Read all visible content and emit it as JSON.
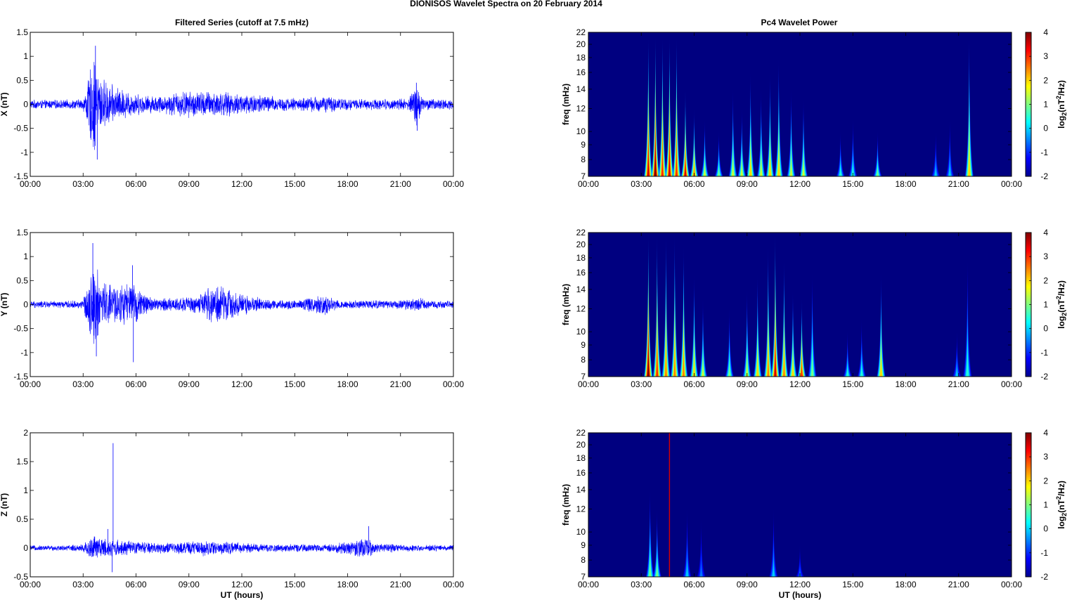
{
  "figure": {
    "title": "DIONISOS Wavelet Spectra on 20 February  2014"
  },
  "left_column": {
    "title": "Filtered Series (cutoff at 7.5 mHz)",
    "xlabel": "UT (hours)"
  },
  "right_column": {
    "title": "Pc4 Wavelet Power",
    "xlabel": "UT (hours)",
    "ylabel": "freq (mHz)"
  },
  "chart_data": [
    {
      "type": "line",
      "title": "Filtered Series (cutoff at 7.5 mHz)",
      "ylabel": "X (nT)",
      "xlabel": "",
      "xlim": [
        0,
        24
      ],
      "ylim": [
        -1.5,
        1.5
      ],
      "x_tick_labels": [
        "00:00",
        "03:00",
        "06:00",
        "09:00",
        "12:00",
        "15:00",
        "18:00",
        "21:00",
        "00:00"
      ],
      "y_ticks": [
        -1.5,
        -1,
        -0.5,
        0,
        0.5,
        1,
        1.5
      ],
      "y_tick_labels": [
        "-1.5",
        "-1",
        "-0.5",
        "0",
        "0.5",
        "1",
        "1.5"
      ],
      "series": [
        {
          "color": "#0000ff",
          "envelope_hours": [
            0,
            1,
            2,
            3,
            3.3,
            3.6,
            3.8,
            4.2,
            4.8,
            5.5,
            6.5,
            7.5,
            8.5,
            9.5,
            10.5,
            11.5,
            12.5,
            13.5,
            14.5,
            15.5,
            16.5,
            17.5,
            18.5,
            19.5,
            20.5,
            21.5,
            21.9,
            22.3,
            23,
            24
          ],
          "envelope_amplitude_nT": [
            0.1,
            0.1,
            0.1,
            0.12,
            0.6,
            1.2,
            0.8,
            0.55,
            0.4,
            0.3,
            0.2,
            0.2,
            0.3,
            0.3,
            0.3,
            0.25,
            0.25,
            0.2,
            0.15,
            0.15,
            0.2,
            0.15,
            0.12,
            0.12,
            0.12,
            0.15,
            0.5,
            0.15,
            0.12,
            0.12
          ],
          "spikes": [
            {
              "x": 3.7,
              "y": 1.22
            },
            {
              "x": 3.8,
              "y": -1.15
            },
            {
              "x": 21.9,
              "y": 0.45
            },
            {
              "x": 21.95,
              "y": -0.55
            }
          ]
        }
      ]
    },
    {
      "type": "line",
      "title": "",
      "ylabel": "Y (nT)",
      "xlabel": "",
      "xlim": [
        0,
        24
      ],
      "ylim": [
        -1.5,
        1.5
      ],
      "x_tick_labels": [
        "00:00",
        "03:00",
        "06:00",
        "09:00",
        "12:00",
        "15:00",
        "18:00",
        "21:00",
        "00:00"
      ],
      "y_ticks": [
        -1.5,
        -1,
        -0.5,
        0,
        0.5,
        1,
        1.5
      ],
      "y_tick_labels": [
        "-1.5",
        "-1",
        "-0.5",
        "0",
        "0.5",
        "1",
        "1.5"
      ],
      "series": [
        {
          "color": "#0000ff",
          "envelope_hours": [
            0,
            1,
            2,
            3,
            3.3,
            3.6,
            3.9,
            4.3,
            5.0,
            5.7,
            6.3,
            7.0,
            8.0,
            9.5,
            10.2,
            10.7,
            11.2,
            12.5,
            13.5,
            15,
            16.7,
            17.5,
            19,
            21,
            22,
            23,
            24
          ],
          "envelope_amplitude_nT": [
            0.08,
            0.08,
            0.08,
            0.1,
            0.6,
            1.0,
            0.7,
            0.5,
            0.45,
            0.5,
            0.3,
            0.15,
            0.15,
            0.2,
            0.4,
            0.5,
            0.35,
            0.2,
            0.12,
            0.1,
            0.25,
            0.1,
            0.1,
            0.1,
            0.15,
            0.08,
            0.08
          ],
          "spikes": [
            {
              "x": 3.55,
              "y": 1.28
            },
            {
              "x": 3.75,
              "y": -1.08
            },
            {
              "x": 5.8,
              "y": 0.82
            },
            {
              "x": 5.85,
              "y": -1.2
            }
          ]
        }
      ]
    },
    {
      "type": "line",
      "title": "",
      "ylabel": "Z (nT)",
      "xlabel": "UT (hours)",
      "xlim": [
        0,
        24
      ],
      "ylim": [
        -0.5,
        2
      ],
      "x_tick_labels": [
        "00:00",
        "03:00",
        "06:00",
        "09:00",
        "12:00",
        "15:00",
        "18:00",
        "21:00",
        "00:00"
      ],
      "y_ticks": [
        -0.5,
        0,
        0.5,
        1,
        1.5,
        2
      ],
      "y_tick_labels": [
        "-0.5",
        "0",
        "0.5",
        "1",
        "1.5",
        "2"
      ],
      "series": [
        {
          "color": "#0000ff",
          "envelope_hours": [
            0,
            2,
            3,
            3.5,
            4,
            5,
            6,
            8,
            10,
            11,
            13,
            15,
            17,
            19.2,
            19.5,
            21,
            23,
            24
          ],
          "envelope_amplitude_nT": [
            0.05,
            0.05,
            0.08,
            0.25,
            0.2,
            0.15,
            0.12,
            0.1,
            0.15,
            0.12,
            0.08,
            0.07,
            0.07,
            0.2,
            0.1,
            0.07,
            0.06,
            0.06
          ],
          "spikes": [
            {
              "x": 4.7,
              "y": 1.82
            },
            {
              "x": 4.65,
              "y": -0.42
            },
            {
              "x": 4.4,
              "y": 0.33
            },
            {
              "x": 19.2,
              "y": 0.38
            }
          ]
        }
      ]
    },
    {
      "type": "heatmap",
      "title": "Pc4 Wavelet Power",
      "ylabel": "freq (mHz)",
      "xlabel": "",
      "xlim": [
        0,
        24
      ],
      "ylim": [
        7,
        22
      ],
      "y_scale": "log",
      "x_tick_labels": [
        "00:00",
        "03:00",
        "06:00",
        "09:00",
        "12:00",
        "15:00",
        "18:00",
        "21:00",
        "00:00"
      ],
      "y_ticks": [
        7,
        8,
        9,
        10,
        12,
        14,
        16,
        18,
        20,
        22
      ],
      "y_tick_labels": [
        "7",
        "8",
        "9",
        "10",
        "12",
        "14",
        "16",
        "18",
        "20",
        "22"
      ],
      "colorbar": {
        "label": "log2(nT²/Hz)",
        "label_base": "log",
        "label_sub": "2",
        "label_mid": "(nT",
        "label_sup": "2",
        "label_end": "/Hz)",
        "range": [
          -2,
          4
        ],
        "ticks": [
          -2,
          -1,
          0,
          1,
          2,
          3,
          4
        ],
        "tick_labels": [
          "-2",
          "-1",
          "0",
          "1",
          "2",
          "3",
          "4"
        ],
        "colormap": "jet"
      },
      "background_log2_power": -2,
      "bursts": [
        {
          "t": 3.4,
          "f_top": 22,
          "peak": 3.5
        },
        {
          "t": 3.8,
          "f_top": 22,
          "peak": 4
        },
        {
          "t": 4.2,
          "f_top": 22,
          "peak": 3
        },
        {
          "t": 4.6,
          "f_top": 22,
          "peak": 3.5
        },
        {
          "t": 5.0,
          "f_top": 22,
          "peak": 3
        },
        {
          "t": 5.5,
          "f_top": 14,
          "peak": 3.5
        },
        {
          "t": 6.0,
          "f_top": 12,
          "peak": 2.5
        },
        {
          "t": 6.6,
          "f_top": 11,
          "peak": 1.5
        },
        {
          "t": 7.4,
          "f_top": 10,
          "peak": 1
        },
        {
          "t": 8.2,
          "f_top": 14,
          "peak": 1.5
        },
        {
          "t": 8.7,
          "f_top": 12,
          "peak": 1.5
        },
        {
          "t": 9.2,
          "f_top": 16,
          "peak": 2
        },
        {
          "t": 9.8,
          "f_top": 14,
          "peak": 1.5
        },
        {
          "t": 10.3,
          "f_top": 16,
          "peak": 2
        },
        {
          "t": 10.8,
          "f_top": 18,
          "peak": 2
        },
        {
          "t": 11.5,
          "f_top": 14,
          "peak": 1.5
        },
        {
          "t": 12.2,
          "f_top": 13,
          "peak": 1.5
        },
        {
          "t": 14.3,
          "f_top": 10,
          "peak": 0.5
        },
        {
          "t": 15.0,
          "f_top": 11,
          "peak": 0.5
        },
        {
          "t": 16.4,
          "f_top": 10,
          "peak": 1
        },
        {
          "t": 19.7,
          "f_top": 10,
          "peak": 0
        },
        {
          "t": 20.5,
          "f_top": 11,
          "peak": 0
        },
        {
          "t": 21.6,
          "f_top": 22,
          "peak": 2
        }
      ]
    },
    {
      "type": "heatmap",
      "title": "",
      "ylabel": "freq (mHz)",
      "xlabel": "",
      "xlim": [
        0,
        24
      ],
      "ylim": [
        7,
        22
      ],
      "y_scale": "log",
      "x_tick_labels": [
        "00:00",
        "03:00",
        "06:00",
        "09:00",
        "12:00",
        "15:00",
        "18:00",
        "21:00",
        "00:00"
      ],
      "y_ticks": [
        7,
        8,
        9,
        10,
        12,
        14,
        16,
        18,
        20,
        22
      ],
      "y_tick_labels": [
        "7",
        "8",
        "9",
        "10",
        "12",
        "14",
        "16",
        "18",
        "20",
        "22"
      ],
      "colorbar": {
        "label": "log2(nT²/Hz)",
        "label_base": "log",
        "label_sub": "2",
        "label_mid": "(nT",
        "label_sup": "2",
        "label_end": "/Hz)",
        "range": [
          -2,
          4
        ],
        "ticks": [
          -2,
          -1,
          0,
          1,
          2,
          3,
          4
        ],
        "tick_labels": [
          "-2",
          "-1",
          "0",
          "1",
          "2",
          "3",
          "4"
        ],
        "colormap": "jet"
      },
      "background_log2_power": -2,
      "bursts": [
        {
          "t": 3.4,
          "f_top": 22,
          "peak": 4
        },
        {
          "t": 3.9,
          "f_top": 22,
          "peak": 3
        },
        {
          "t": 4.4,
          "f_top": 22,
          "peak": 2.5
        },
        {
          "t": 4.9,
          "f_top": 22,
          "peak": 2.5
        },
        {
          "t": 5.4,
          "f_top": 20,
          "peak": 2.5
        },
        {
          "t": 6.0,
          "f_top": 16,
          "peak": 2
        },
        {
          "t": 6.5,
          "f_top": 13,
          "peak": 1.5
        },
        {
          "t": 8.0,
          "f_top": 12,
          "peak": 1
        },
        {
          "t": 9.0,
          "f_top": 14,
          "peak": 1.5
        },
        {
          "t": 9.6,
          "f_top": 16,
          "peak": 2
        },
        {
          "t": 10.2,
          "f_top": 20,
          "peak": 2.5
        },
        {
          "t": 10.6,
          "f_top": 22,
          "peak": 3.5
        },
        {
          "t": 11.1,
          "f_top": 18,
          "peak": 2.5
        },
        {
          "t": 11.6,
          "f_top": 14,
          "peak": 2
        },
        {
          "t": 12.1,
          "f_top": 13,
          "peak": 3
        },
        {
          "t": 12.7,
          "f_top": 16,
          "peak": 1
        },
        {
          "t": 14.7,
          "f_top": 10,
          "peak": 0.5
        },
        {
          "t": 15.5,
          "f_top": 11,
          "peak": 0.5
        },
        {
          "t": 16.6,
          "f_top": 16,
          "peak": 2
        },
        {
          "t": 20.9,
          "f_top": 10,
          "peak": 0
        },
        {
          "t": 21.5,
          "f_top": 18,
          "peak": 0.5
        }
      ]
    },
    {
      "type": "heatmap",
      "title": "",
      "ylabel": "freq (mHz)",
      "xlabel": "UT (hours)",
      "xlim": [
        0,
        24
      ],
      "ylim": [
        7,
        22
      ],
      "y_scale": "log",
      "x_tick_labels": [
        "00:00",
        "03:00",
        "06:00",
        "09:00",
        "12:00",
        "15:00",
        "18:00",
        "21:00",
        "00:00"
      ],
      "y_ticks": [
        7,
        8,
        9,
        10,
        12,
        14,
        16,
        18,
        20,
        22
      ],
      "y_tick_labels": [
        "7",
        "8",
        "9",
        "10",
        "12",
        "14",
        "16",
        "18",
        "20",
        "22"
      ],
      "colorbar": {
        "label": "log2(nT²/Hz)",
        "label_base": "log",
        "label_sub": "2",
        "label_mid": "(nT",
        "label_sup": "2",
        "label_end": "/Hz)",
        "range": [
          -2,
          4
        ],
        "ticks": [
          -2,
          -1,
          0,
          1,
          2,
          3,
          4
        ],
        "tick_labels": [
          "-2",
          "-1",
          "0",
          "1",
          "2",
          "3",
          "4"
        ],
        "colormap": "jet"
      },
      "background_log2_power": -2,
      "bursts": [
        {
          "t": 3.5,
          "f_top": 14,
          "peak": 1
        },
        {
          "t": 3.9,
          "f_top": 12,
          "peak": 1
        },
        {
          "t": 5.6,
          "f_top": 12,
          "peak": 0
        },
        {
          "t": 6.4,
          "f_top": 11,
          "peak": -0.5
        },
        {
          "t": 10.5,
          "f_top": 12,
          "peak": 0
        },
        {
          "t": 12.0,
          "f_top": 9,
          "peak": -0.5
        }
      ],
      "spike_line": {
        "t": 4.6,
        "peak": 3.5
      }
    }
  ]
}
